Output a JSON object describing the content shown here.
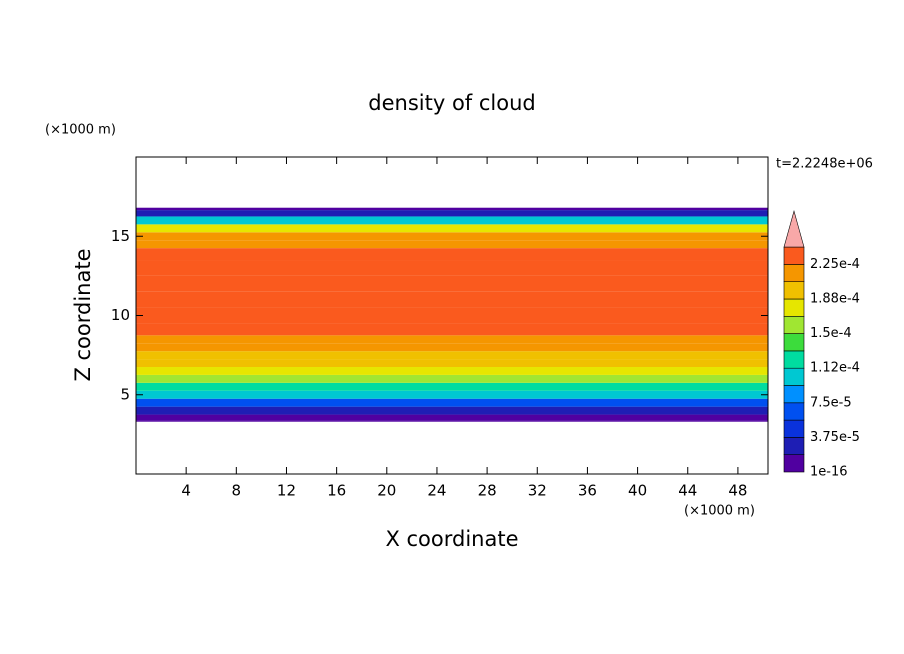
{
  "chart_data": {
    "type": "contour",
    "title": "density of cloud",
    "x_label": "X coordinate",
    "y_label": "Z coordinate",
    "x_unit": "(×1000 m)",
    "y_unit": "(×1000 m)",
    "time_label": "t=2.2248e+06",
    "xlim": [
      0,
      50.4
    ],
    "ylim": [
      0,
      20
    ],
    "xticks": [
      4,
      8,
      12,
      16,
      20,
      24,
      28,
      32,
      36,
      40,
      44,
      48
    ],
    "yticks": [
      5,
      10,
      15
    ],
    "z": [
      3.3,
      3.5,
      4,
      4.5,
      5,
      5.5,
      6,
      6.5,
      7,
      7.5,
      8,
      8.5,
      9,
      10,
      11,
      12,
      13,
      14,
      14.5,
      15,
      15.5,
      16,
      16.5,
      16.8
    ],
    "values": [
      1e-05,
      1e-05,
      3e-05,
      6e-05,
      0.0001,
      0.00013,
      0.000155,
      0.00018,
      0.000195,
      0.000205,
      0.000215,
      0.00022,
      0.00023,
      0.00023,
      0.00023,
      0.00023,
      0.00023,
      0.00023,
      0.00022,
      0.00021,
      0.00017,
      0.0001,
      2e-05,
      1e-05
    ],
    "levels": [
      1e-16,
      1.875e-05,
      3.75e-05,
      5.625e-05,
      7.5e-05,
      9.375e-05,
      0.0001125,
      0.00013125,
      0.00015,
      0.00016875,
      0.0001875,
      0.00020625,
      0.000225,
      0.00024375
    ],
    "colors": [
      "#5000a0",
      "#1e1eb4",
      "#0a32dc",
      "#0050f0",
      "#0090ff",
      "#00c8d2",
      "#00dca0",
      "#3cdc3c",
      "#a0e632",
      "#e6e600",
      "#f0c000",
      "#f59600",
      "#fa5a1e",
      "#f53232",
      "#f8a8a8"
    ],
    "colorbar_ticks": [
      1e-16,
      {
        "value": 3.75e-05,
        "label": "3.75e-5"
      },
      {
        "value": 7.5e-05,
        "label": "7.5e-5"
      },
      {
        "value": 0.0001125,
        "label": "1.12e-4"
      },
      {
        "value": 0.00015,
        "label": "1.5e-4"
      },
      {
        "value": 0.0001875,
        "label": "1.88e-4"
      },
      {
        "value": 0.000225,
        "label": "2.25e-4"
      }
    ]
  }
}
